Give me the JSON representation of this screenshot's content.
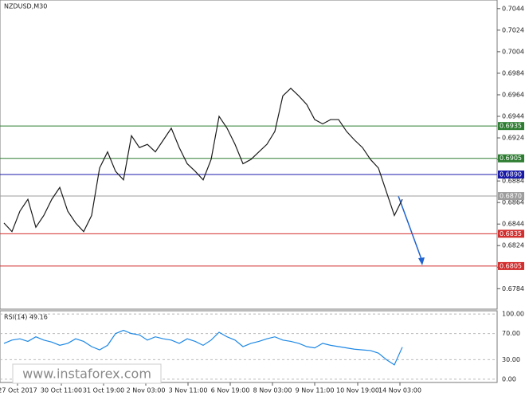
{
  "chart_data": {
    "type": "line",
    "title": "NZDUSD,M30",
    "values": [
      0.6845,
      0.6837,
      0.6856,
      0.6867,
      0.6841,
      0.6852,
      0.6867,
      0.6878,
      0.6856,
      0.6845,
      0.6837,
      0.6852,
      0.6896,
      0.6911,
      0.6893,
      0.6885,
      0.6926,
      0.6915,
      0.6918,
      0.6911,
      0.6922,
      0.6933,
      0.6915,
      0.69,
      0.6893,
      0.6885,
      0.6904,
      0.6944,
      0.6933,
      0.6918,
      0.69,
      0.6904,
      0.6911,
      0.6918,
      0.693,
      0.6963,
      0.697,
      0.6963,
      0.6955,
      0.6941,
      0.6937,
      0.6941,
      0.6941,
      0.693,
      0.6922,
      0.6915,
      0.6904,
      0.6896,
      0.6874,
      0.6852,
      0.6867
    ],
    "color": "#1a1a1a",
    "xlim": [
      -0.5,
      61.9
    ],
    "ylim": [
      0.6765,
      0.7052
    ],
    "yticks": [
      0.7044,
      0.7024,
      0.7004,
      0.6984,
      0.6964,
      0.6944,
      0.6924,
      0.6904,
      0.6884,
      0.6864,
      0.6844,
      0.6824,
      0.6804,
      0.6784
    ],
    "xticks": [
      {
        "value": 1.7,
        "label": "27 Oct 2017"
      },
      {
        "value": 7.2,
        "label": "30 Oct 11:00"
      },
      {
        "value": 12.5,
        "label": "31 Oct 19:00"
      },
      {
        "value": 17.8,
        "label": "2 Nov 03:00"
      },
      {
        "value": 23.1,
        "label": "3 Nov 11:00"
      },
      {
        "value": 28.4,
        "label": "6 Nov 19:00"
      },
      {
        "value": 33.7,
        "label": "8 Nov 03:00"
      },
      {
        "value": 39,
        "label": "9 Nov 11:00"
      },
      {
        "value": 44.4,
        "label": "10 Nov 19:00"
      },
      {
        "value": 49.7,
        "label": "14 Nov 03:00"
      }
    ],
    "levels": [
      {
        "value": 0.6935,
        "label": "0.6935",
        "color": "#2e7d32"
      },
      {
        "value": 0.6905,
        "label": "0.6905",
        "color": "#2e7d32"
      },
      {
        "value": 0.689,
        "label": "0.6890",
        "color": "#1a1aa8"
      },
      {
        "value": 0.687,
        "label": "0.6870",
        "color": "#9e9e9e"
      },
      {
        "value": 0.6835,
        "label": "0.6835",
        "color": "#d32f2f"
      },
      {
        "value": 0.6805,
        "label": "0.6805",
        "color": "#d32f2f"
      }
    ],
    "rsi": {
      "title": "RSI(14) 49.16",
      "color": "#1e88e5",
      "ylim": [
        -5,
        105
      ],
      "yticks": [
        {
          "value": 100,
          "label": "100.00"
        },
        {
          "value": 70,
          "label": "70.00"
        },
        {
          "value": 30,
          "label": "30.00"
        },
        {
          "value": 0,
          "label": "0.00"
        }
      ],
      "values": [
        55,
        60,
        62,
        58,
        65,
        60,
        57,
        52,
        55,
        62,
        58,
        50,
        45,
        52,
        70,
        75,
        70,
        68,
        60,
        65,
        62,
        60,
        55,
        62,
        58,
        52,
        60,
        72,
        65,
        60,
        50,
        55,
        58,
        62,
        65,
        60,
        58,
        55,
        50,
        48,
        55,
        52,
        50,
        48,
        46,
        45,
        44,
        40,
        30,
        22,
        49.16
      ]
    },
    "watermark": "www.instaforex.com"
  }
}
